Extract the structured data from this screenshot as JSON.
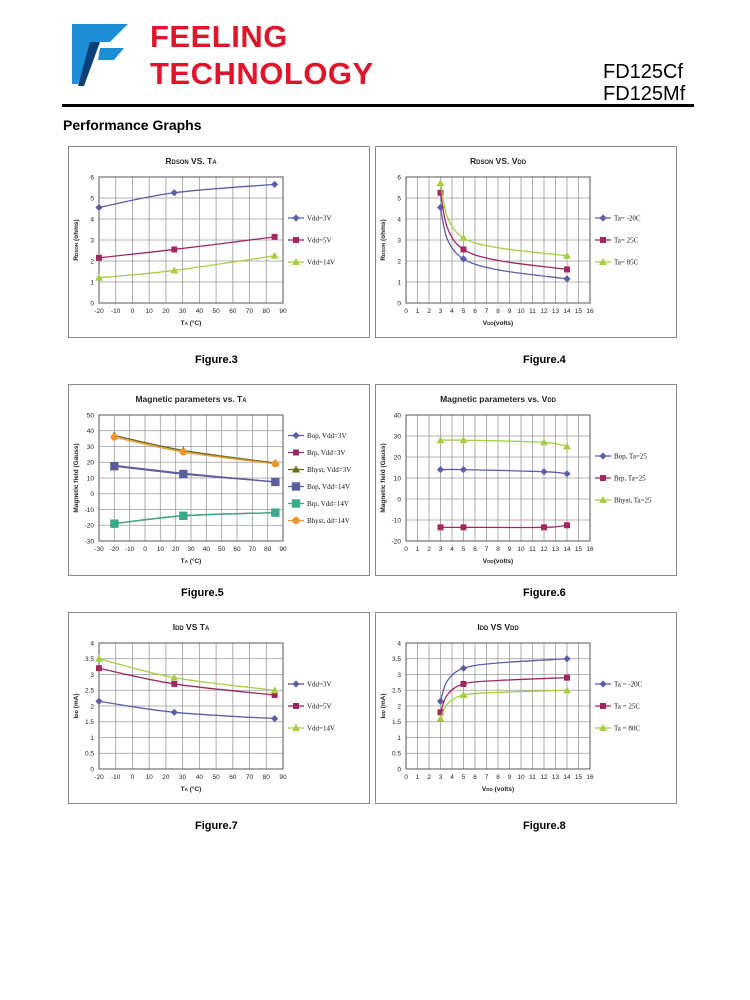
{
  "header": {
    "brand_line1": "FEELING",
    "brand_line2": "TECHNOLOGY",
    "model_line1": "FD125Cf",
    "model_line2": "FD125Mf",
    "accent_color": "#e0142b",
    "logo_color": "#1e8fd6"
  },
  "section_title": "Performance Graphs",
  "figures": [
    "Figure.3",
    "Figure.4",
    "Figure.5",
    "Figure.6",
    "Figure.7",
    "Figure.8"
  ],
  "chart_data": [
    {
      "type": "line",
      "title": [
        {
          "t": "R"
        },
        {
          "t": "DSON",
          "sub": true
        },
        {
          "t": " VS. T"
        },
        {
          "t": "A",
          "sub": true
        }
      ],
      "xlabel": [
        {
          "t": "T"
        },
        {
          "t": "A",
          "sub": true
        },
        {
          "t": " (°C)"
        }
      ],
      "ylabel": [
        {
          "t": "R"
        },
        {
          "t": "DSON",
          "sub": true
        },
        {
          "t": " (ohms)"
        }
      ],
      "xlim": [
        -20,
        90
      ],
      "ylim": [
        0,
        6
      ],
      "xticks": [
        -20,
        -10,
        0,
        10,
        20,
        30,
        40,
        50,
        60,
        70,
        80,
        90
      ],
      "yticks": [
        0,
        1,
        2,
        3,
        4,
        5,
        6
      ],
      "series": [
        {
          "name": "Vdd=3V",
          "color": "#5b5ea6",
          "marker": "diamond",
          "x": [
            -20,
            25,
            85
          ],
          "y": [
            4.55,
            5.25,
            5.65
          ]
        },
        {
          "name": "Vdd=5V",
          "color": "#a0285e",
          "marker": "square",
          "x": [
            -20,
            25,
            85
          ],
          "y": [
            2.15,
            2.55,
            3.15
          ]
        },
        {
          "name": "Vdd=14V",
          "color": "#a7cd45",
          "marker": "triangle",
          "x": [
            -20,
            25,
            85
          ],
          "y": [
            1.2,
            1.55,
            2.25
          ]
        }
      ]
    },
    {
      "type": "line",
      "title": [
        {
          "t": "R"
        },
        {
          "t": "DSON",
          "sub": true
        },
        {
          "t": " VS. V"
        },
        {
          "t": "DD",
          "sub": true
        }
      ],
      "xlabel": [
        {
          "t": "V"
        },
        {
          "t": "DD",
          "sub": true
        },
        {
          "t": "(volts)"
        }
      ],
      "ylabel": [
        {
          "t": "R"
        },
        {
          "t": "DSON",
          "sub": true
        },
        {
          "t": " (ohms)"
        }
      ],
      "xlim": [
        0,
        16
      ],
      "ylim": [
        0,
        6
      ],
      "xticks": [
        0,
        1,
        2,
        3,
        4,
        5,
        6,
        7,
        8,
        9,
        10,
        11,
        12,
        13,
        14,
        15,
        16
      ],
      "yticks": [
        0,
        1,
        2,
        3,
        4,
        5,
        6
      ],
      "series": [
        {
          "name": "Ta= -20C",
          "color": "#5b5ea6",
          "marker": "diamond",
          "x": [
            3,
            5,
            14
          ],
          "y": [
            4.55,
            2.1,
            1.15
          ],
          "curve": true
        },
        {
          "name": "Ta= 25C",
          "color": "#a0285e",
          "marker": "square",
          "x": [
            3,
            5,
            14
          ],
          "y": [
            5.25,
            2.55,
            1.6
          ],
          "curve": true
        },
        {
          "name": "Ta= 85C",
          "color": "#a7cd45",
          "marker": "triangle",
          "x": [
            3,
            5,
            14
          ],
          "y": [
            5.7,
            3.1,
            2.25
          ],
          "curve": true
        }
      ]
    },
    {
      "type": "line",
      "title": [
        {
          "t": "Magnetic parameters vs. T"
        },
        {
          "t": "A",
          "sub": true
        }
      ],
      "xlabel": [
        {
          "t": "T"
        },
        {
          "t": "A",
          "sub": true
        },
        {
          "t": " (°C)"
        }
      ],
      "ylabel": [
        {
          "t": "Magnetic field (Gauss)"
        }
      ],
      "xlim": [
        -30,
        90
      ],
      "ylim": [
        -30,
        50
      ],
      "xticks": [
        -30,
        -20,
        -10,
        0,
        10,
        20,
        30,
        40,
        50,
        60,
        70,
        80,
        90
      ],
      "yticks": [
        -30,
        -20,
        -10,
        0,
        10,
        20,
        30,
        40,
        50
      ],
      "series": [
        {
          "name": "Bop, Vdd=3V",
          "color": "#5b5ea6",
          "marker": "diamond",
          "x": [
            -20,
            25,
            85
          ],
          "y": [
            18,
            13,
            7.5
          ]
        },
        {
          "name": "Brp, Vdd=3V",
          "color": "#a0285e",
          "marker": "square",
          "x": [
            -20,
            25,
            85
          ],
          "y": [
            -19,
            -14,
            -12
          ]
        },
        {
          "name": "Bhyst, Vdd=3V",
          "color": "#6b6b1e",
          "marker": "triangle",
          "x": [
            -20,
            25,
            85
          ],
          "y": [
            37,
            27.5,
            19.5
          ]
        },
        {
          "name": "Bop, Vdd=14V",
          "color": "#5a5f9c",
          "marker": "bigsquare",
          "x": [
            -20,
            25,
            85
          ],
          "y": [
            17.5,
            12.5,
            7.5
          ]
        },
        {
          "name": "Brp, Vdd=14V",
          "color": "#3aaa8a",
          "marker": "bigsquare",
          "x": [
            -20,
            25,
            85
          ],
          "y": [
            -19,
            -14,
            -12
          ]
        },
        {
          "name": "Bhyst, dd=14V",
          "color": "#f0952a",
          "marker": "circle",
          "x": [
            -20,
            25,
            85
          ],
          "y": [
            36,
            26.5,
            19
          ]
        }
      ]
    },
    {
      "type": "line",
      "title": [
        {
          "t": "Magnetic parameters vs. V"
        },
        {
          "t": "DD",
          "sub": true
        }
      ],
      "xlabel": [
        {
          "t": "V"
        },
        {
          "t": "DD",
          "sub": true
        },
        {
          "t": "(volts)"
        }
      ],
      "ylabel": [
        {
          "t": "Magnetic field (Gauss)"
        }
      ],
      "xlim": [
        0,
        16
      ],
      "ylim": [
        -20,
        40
      ],
      "xticks": [
        0,
        1,
        2,
        3,
        4,
        5,
        6,
        7,
        8,
        9,
        10,
        11,
        12,
        13,
        14,
        15,
        16
      ],
      "yticks": [
        -20,
        -10,
        0,
        10,
        20,
        30,
        40
      ],
      "series": [
        {
          "name": "Bop, Ta=25",
          "color": "#5b5ea6",
          "marker": "diamond",
          "x": [
            3,
            5,
            12,
            14
          ],
          "y": [
            14,
            14,
            13,
            12
          ]
        },
        {
          "name": "Brp, Ta=25",
          "color": "#a0285e",
          "marker": "square",
          "x": [
            3,
            5,
            12,
            14
          ],
          "y": [
            -13.5,
            -13.5,
            -13.5,
            -12.5
          ]
        },
        {
          "name": "Bhyst, Ta=25",
          "color": "#a7cd45",
          "marker": "triangle",
          "x": [
            3,
            5,
            12,
            14
          ],
          "y": [
            28,
            28,
            27,
            25
          ]
        }
      ]
    },
    {
      "type": "line",
      "title": [
        {
          "t": "I"
        },
        {
          "t": "DD",
          "sub": true
        },
        {
          "t": " VS T"
        },
        {
          "t": "A",
          "sub": true
        }
      ],
      "xlabel": [
        {
          "t": "T"
        },
        {
          "t": "A",
          "sub": true
        },
        {
          "t": " (°C)"
        }
      ],
      "ylabel": [
        {
          "t": "I"
        },
        {
          "t": "DD",
          "sub": true
        },
        {
          "t": " (mA)"
        }
      ],
      "xlim": [
        -20,
        90
      ],
      "ylim": [
        0,
        4
      ],
      "xticks": [
        -20,
        -10,
        0,
        10,
        20,
        30,
        40,
        50,
        60,
        70,
        80,
        90
      ],
      "yticks": [
        0,
        0.5,
        1,
        1.5,
        2,
        2.5,
        3,
        3.5,
        4
      ],
      "series": [
        {
          "name": "Vdd=3V",
          "color": "#5b5ea6",
          "marker": "diamond",
          "x": [
            -20,
            25,
            85
          ],
          "y": [
            2.15,
            1.8,
            1.6
          ]
        },
        {
          "name": "Vdd=5V",
          "color": "#a0285e",
          "marker": "square",
          "x": [
            -20,
            25,
            85
          ],
          "y": [
            3.2,
            2.7,
            2.35
          ]
        },
        {
          "name": "Vdd=14V",
          "color": "#a7cd45",
          "marker": "triangle",
          "x": [
            -20,
            25,
            85
          ],
          "y": [
            3.5,
            2.9,
            2.5
          ]
        }
      ]
    },
    {
      "type": "line",
      "title": [
        {
          "t": "I"
        },
        {
          "t": "DD",
          "sub": true
        },
        {
          "t": " VS V"
        },
        {
          "t": "DD",
          "sub": true
        }
      ],
      "xlabel": [
        {
          "t": "V"
        },
        {
          "t": "DD",
          "sub": true
        },
        {
          "t": " (volts)"
        }
      ],
      "ylabel": [
        {
          "t": "I"
        },
        {
          "t": "DD",
          "sub": true
        },
        {
          "t": " (mA)"
        }
      ],
      "xlim": [
        0,
        16
      ],
      "ylim": [
        0,
        4
      ],
      "xticks": [
        0,
        1,
        2,
        3,
        4,
        5,
        6,
        7,
        8,
        9,
        10,
        11,
        12,
        13,
        14,
        15,
        16
      ],
      "yticks": [
        0,
        0.5,
        1,
        1.5,
        2,
        2.5,
        3,
        3.5,
        4
      ],
      "series": [
        {
          "name": "Ta = -20C",
          "color": "#5b5ea6",
          "marker": "diamond",
          "x": [
            3,
            5,
            14
          ],
          "y": [
            2.15,
            3.2,
            3.5
          ],
          "curve": true
        },
        {
          "name": "Ta = 25C",
          "color": "#a0285e",
          "marker": "square",
          "x": [
            3,
            5,
            14
          ],
          "y": [
            1.8,
            2.7,
            2.9
          ],
          "curve": true
        },
        {
          "name": "Ta = 80C",
          "color": "#a7cd45",
          "marker": "triangle",
          "x": [
            3,
            5,
            14
          ],
          "y": [
            1.6,
            2.35,
            2.5
          ],
          "curve": true
        }
      ]
    }
  ]
}
